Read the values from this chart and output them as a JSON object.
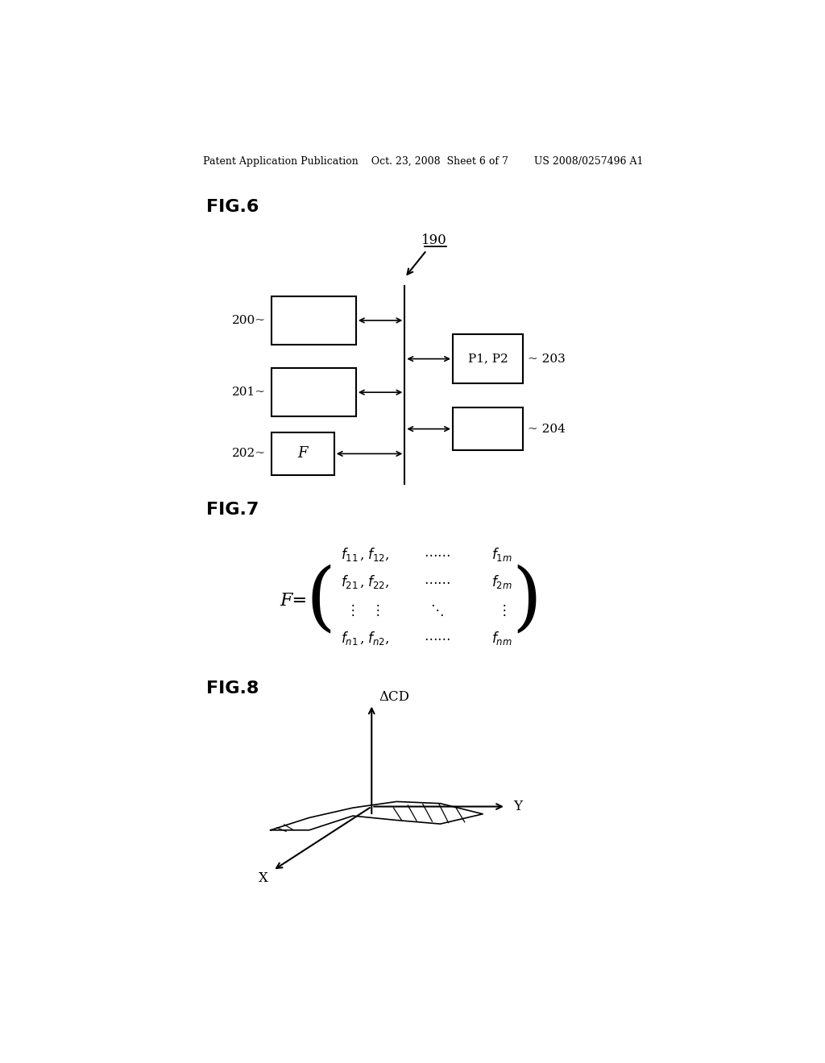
{
  "bg_color": "#ffffff",
  "header_text": "Patent Application Publication    Oct. 23, 2008  Sheet 6 of 7        US 2008/0257496 A1",
  "fig6_label": "FIG.6",
  "fig7_label": "FIG.7",
  "fig8_label": "FIG.8",
  "box200_label": "200",
  "box201_label": "201",
  "box202_label": "202",
  "box202_text": "F",
  "box203_label": "203",
  "box203_text": "P1, P2",
  "box204_label": "204",
  "label190": "190",
  "matrix_F_label": "F=",
  "delta_cd": "ΔCD",
  "axis_y": "Y",
  "axis_x": "X"
}
